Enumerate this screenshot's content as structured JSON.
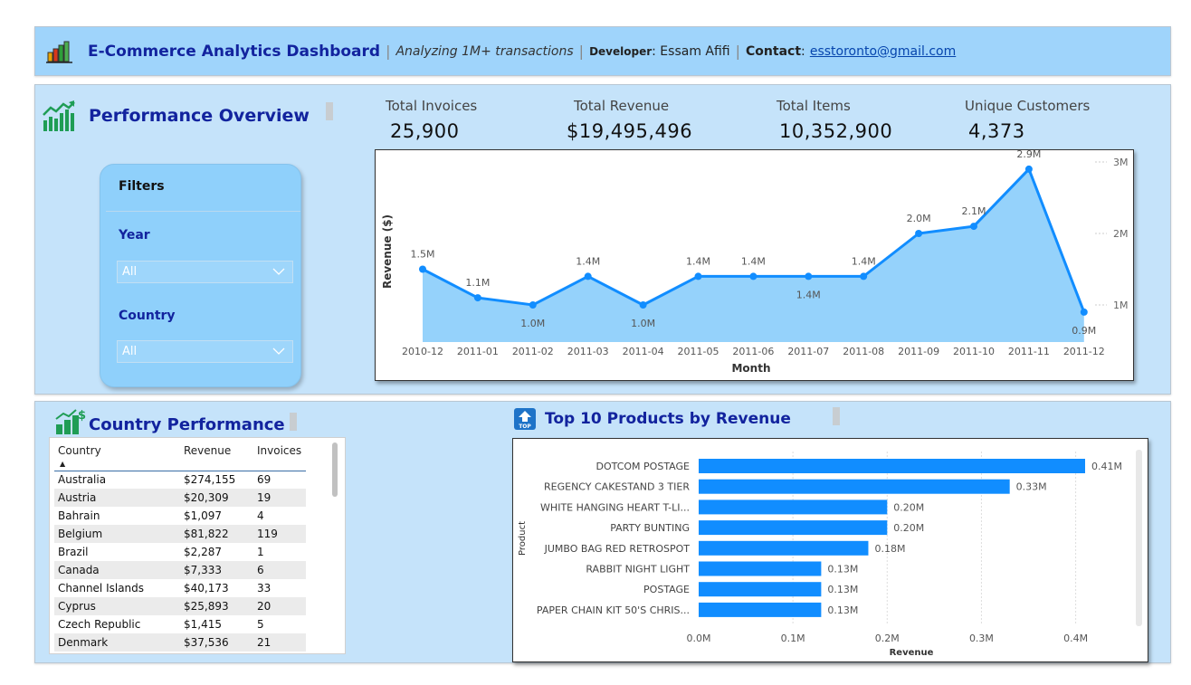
{
  "header": {
    "title": "E-Commerce Analytics Dashboard",
    "subtitle": "Analyzing 1M+ transactions",
    "developer_label": "Developer",
    "developer_name": ": Essam Afifi",
    "contact_label": "Contact",
    "contact_colon": ":",
    "contact_email": "esstoronto@gmail.com",
    "separator": "|",
    "logo_icon": "bar-chart-icon"
  },
  "overview": {
    "title": "Performance Overview",
    "icon": "trending-up-chart-icon"
  },
  "kpis": [
    {
      "label": "Total Invoices",
      "value": "25,900"
    },
    {
      "label": "Total Revenue",
      "value": "$19,495,496"
    },
    {
      "label": "Total Items",
      "value": "10,352,900"
    },
    {
      "label": "Unique Customers",
      "value": "4,373"
    }
  ],
  "filters": {
    "title": "Filters",
    "year_label": "Year",
    "year_value": "All",
    "country_label": "Country",
    "country_value": "All"
  },
  "country_performance": {
    "title": "Country Performance",
    "icon": "growth-dollar-icon",
    "columns": [
      "Country",
      "Revenue",
      "Invoices"
    ],
    "rows": [
      [
        "Australia",
        "$274,155",
        "69"
      ],
      [
        "Austria",
        "$20,309",
        "19"
      ],
      [
        "Bahrain",
        "$1,097",
        "4"
      ],
      [
        "Belgium",
        "$81,822",
        "119"
      ],
      [
        "Brazil",
        "$2,287",
        "1"
      ],
      [
        "Canada",
        "$7,333",
        "6"
      ],
      [
        "Channel Islands",
        "$40,173",
        "33"
      ],
      [
        "Cyprus",
        "$25,893",
        "20"
      ],
      [
        "Czech Republic",
        "$1,415",
        "5"
      ],
      [
        "Denmark",
        "$37,536",
        "21"
      ]
    ]
  },
  "top_products": {
    "title": "Top 10 Products by Revenue",
    "icon": "top-badge-icon",
    "icon_text": "TOP"
  },
  "colors": {
    "accent": "#118dff",
    "area_fill": "#8fd0fb",
    "title_blue": "#12239e",
    "panel_bg": "#c5e3fa",
    "header_bg": "#9fd4fb"
  },
  "chart_data": [
    {
      "type": "area",
      "xlabel": "Month",
      "ylabel": "Revenue ($)",
      "categories": [
        "2010-12",
        "2011-01",
        "2011-02",
        "2011-03",
        "2011-04",
        "2011-05",
        "2011-06",
        "2011-07",
        "2011-08",
        "2011-09",
        "2011-10",
        "2011-11",
        "2011-12"
      ],
      "values": [
        1.5,
        1.1,
        1.0,
        1.4,
        1.0,
        1.4,
        1.4,
        1.4,
        1.4,
        2.0,
        2.1,
        2.9,
        0.9
      ],
      "data_labels": [
        "1.5M",
        "1.1M",
        "1.0M",
        "1.4M",
        "1.0M",
        "1.4M",
        "1.4M",
        "1.4M",
        "1.4M",
        "2.0M",
        "2.1M",
        "2.9M",
        "0.9M"
      ],
      "y_ticks": [
        "1M",
        "2M",
        "3M"
      ],
      "y_tick_values": [
        1,
        2,
        3
      ],
      "y_axis_position": "right",
      "ylim": [
        0.8,
        3.1
      ],
      "unit": "millions"
    },
    {
      "type": "bar",
      "orientation": "horizontal",
      "xlabel": "Revenue",
      "ylabel": "Product",
      "categories": [
        "DOTCOM POSTAGE",
        "REGENCY CAKESTAND 3 TIER",
        "WHITE HANGING HEART T-LI...",
        "PARTY BUNTING",
        "JUMBO BAG RED RETROSPOT",
        "RABBIT NIGHT LIGHT",
        "POSTAGE",
        "PAPER CHAIN KIT 50'S CHRIS..."
      ],
      "values": [
        0.41,
        0.33,
        0.2,
        0.2,
        0.18,
        0.13,
        0.13,
        0.13
      ],
      "data_labels": [
        "0.41M",
        "0.33M",
        "0.20M",
        "0.20M",
        "0.18M",
        "0.13M",
        "0.13M",
        "0.13M"
      ],
      "x_ticks": [
        "0.0M",
        "0.1M",
        "0.2M",
        "0.3M",
        "0.4M"
      ],
      "x_tick_values": [
        0,
        0.1,
        0.2,
        0.3,
        0.4
      ],
      "xlim": [
        0,
        0.41
      ],
      "unit": "millions",
      "grid": true
    }
  ]
}
